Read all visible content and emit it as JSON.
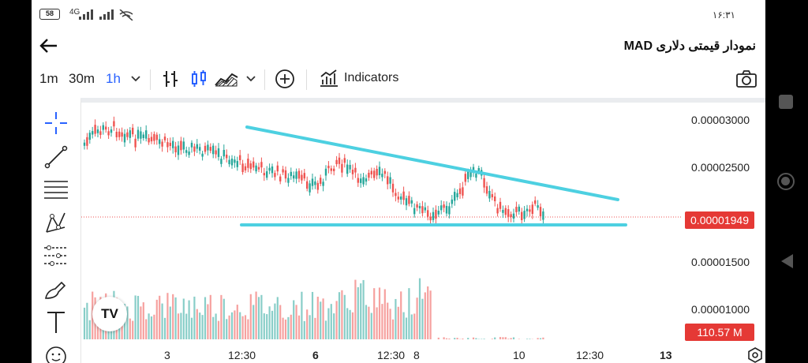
{
  "status": {
    "battery": "58",
    "network": "4G",
    "clock": "۱۶:۳۱"
  },
  "header": {
    "title": "نمودار قیمتی دلاری MAD"
  },
  "toolbar": {
    "intervals": [
      "1m",
      "30m",
      "1h"
    ],
    "indicators_label": "Indicators"
  },
  "chart_data": {
    "type": "candlestick",
    "y_ticks": [
      "0.00003000",
      "0.00002500",
      "0.00001500",
      "0.00001000"
    ],
    "x_ticks": [
      "3",
      "12:30",
      "6",
      "12:30",
      "8",
      "10",
      "12:30",
      "13"
    ],
    "bold_x_ticks": [
      "6",
      "13"
    ],
    "last_price": "0.00001949",
    "volume": "110.57 M",
    "colors": {
      "up": "#26a69a",
      "down": "#ef5350",
      "trendline": "#4dd0e1",
      "price_tag": "#e53935"
    }
  },
  "logo": {
    "text": "TV"
  }
}
